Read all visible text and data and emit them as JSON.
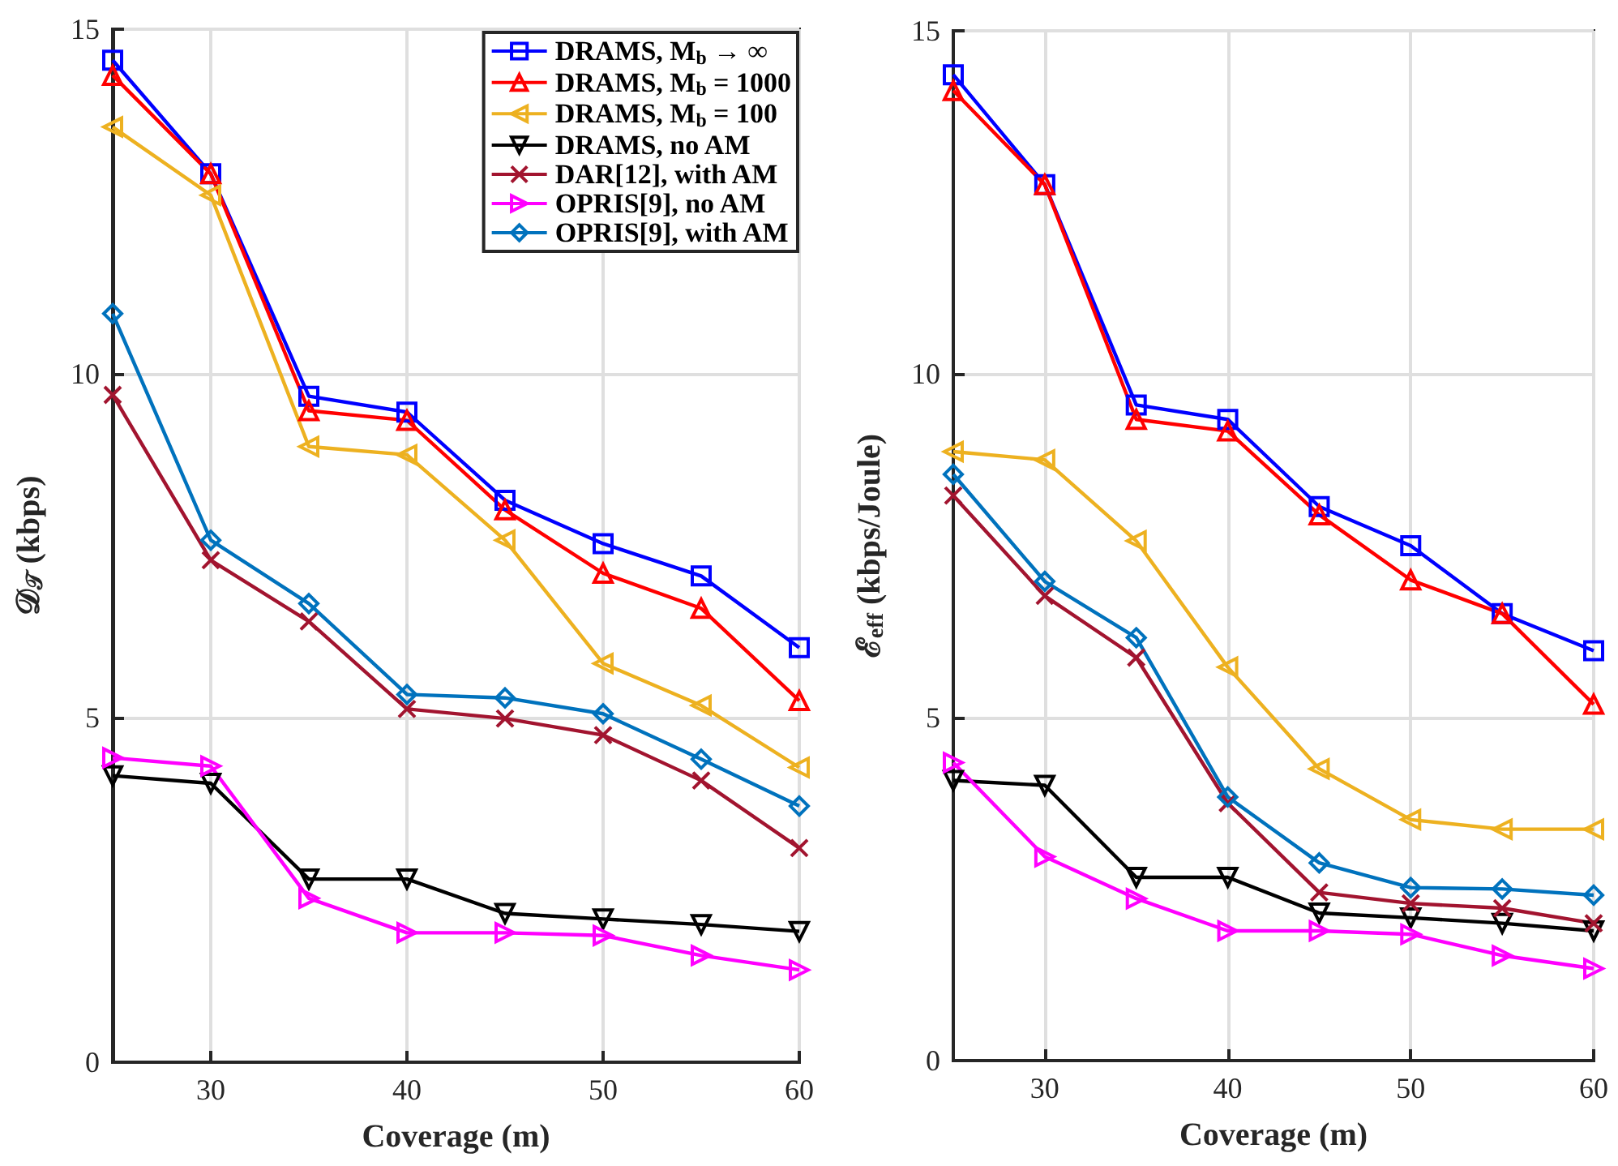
{
  "chart_data": [
    {
      "type": "line",
      "xlabel": "Coverage (m)",
      "ylabel": "𝒟$_{𝒯}$ (kbps)",
      "x": [
        25,
        30,
        35,
        40,
        45,
        50,
        55,
        60
      ],
      "xlim": [
        25,
        60
      ],
      "xticks": [
        30,
        40,
        50,
        60
      ],
      "ylim": [
        0,
        15
      ],
      "yticks": [
        0,
        5,
        10,
        15
      ],
      "grid": true,
      "legend": "top right",
      "series": [
        {
          "name": "DRAMS, M$_{b}$ → ∞",
          "color": "#0000ff",
          "marker": "square",
          "values": [
            14.55,
            12.9,
            9.67,
            9.44,
            8.16,
            7.53,
            7.06,
            6.02
          ]
        },
        {
          "name": "DRAMS, M$_{b}$ = 1000",
          "color": "#ff0000",
          "marker": "triangle",
          "values": [
            14.33,
            12.9,
            9.46,
            9.32,
            8.02,
            7.1,
            6.59,
            5.25
          ]
        },
        {
          "name": "DRAMS, M$_{b}$ = 100",
          "color": "#edb120",
          "marker": "triangle-left",
          "values": [
            13.58,
            12.59,
            8.94,
            8.82,
            7.58,
            5.79,
            5.18,
            4.28
          ]
        },
        {
          "name": "DRAMS, no AM",
          "color": "#000000",
          "marker": "triangle-down",
          "values": [
            4.16,
            4.05,
            2.66,
            2.66,
            2.16,
            2.08,
            2.0,
            1.9
          ]
        },
        {
          "name": "DAR[12], with AM",
          "color": "#a2142f",
          "marker": "cross",
          "values": [
            9.69,
            7.29,
            6.4,
            5.13,
            4.99,
            4.75,
            4.09,
            3.11
          ]
        },
        {
          "name": "OPRIS[9], no AM",
          "color": "#ff00ff",
          "marker": "triangle-right",
          "values": [
            4.42,
            4.3,
            2.38,
            1.88,
            1.88,
            1.84,
            1.55,
            1.34
          ]
        },
        {
          "name": "OPRIS[9], with AM",
          "color": "#0072bd",
          "marker": "diamond",
          "values": [
            10.87,
            7.58,
            6.66,
            5.34,
            5.29,
            5.06,
            4.4,
            3.72
          ]
        }
      ]
    },
    {
      "type": "line",
      "xlabel": "Coverage (m)",
      "ylabel": "ℰ$_{eff}$ (kbps/Joule)",
      "x": [
        25,
        30,
        35,
        40,
        45,
        50,
        55,
        60
      ],
      "xlim": [
        25,
        60
      ],
      "xticks": [
        30,
        40,
        50,
        60
      ],
      "ylim": [
        0,
        15
      ],
      "yticks": [
        0,
        5,
        10,
        15
      ],
      "grid": true,
      "series": [
        {
          "color": "#0000ff",
          "marker": "square",
          "values": [
            14.36,
            12.76,
            9.55,
            9.34,
            8.07,
            7.5,
            6.51,
            5.97
          ]
        },
        {
          "color": "#ff0000",
          "marker": "triangle",
          "values": [
            14.13,
            12.76,
            9.34,
            9.17,
            7.95,
            7.0,
            6.51,
            5.19
          ]
        },
        {
          "color": "#edb120",
          "marker": "triangle-left",
          "values": [
            8.87,
            8.75,
            7.57,
            5.73,
            4.25,
            3.51,
            3.37,
            3.37
          ]
        },
        {
          "color": "#000000",
          "marker": "triangle-down",
          "values": [
            4.08,
            4.01,
            2.67,
            2.67,
            2.15,
            2.08,
            2.0,
            1.89
          ]
        },
        {
          "color": "#a2142f",
          "marker": "cross",
          "values": [
            8.23,
            6.77,
            5.87,
            3.75,
            2.45,
            2.29,
            2.22,
            2.0
          ]
        },
        {
          "color": "#ff00ff",
          "marker": "triangle-right",
          "values": [
            4.34,
            2.97,
            2.36,
            1.89,
            1.89,
            1.84,
            1.53,
            1.34
          ]
        },
        {
          "color": "#0072bd",
          "marker": "diamond",
          "values": [
            8.54,
            6.98,
            6.16,
            3.84,
            2.88,
            2.52,
            2.5,
            2.41
          ]
        }
      ]
    }
  ]
}
